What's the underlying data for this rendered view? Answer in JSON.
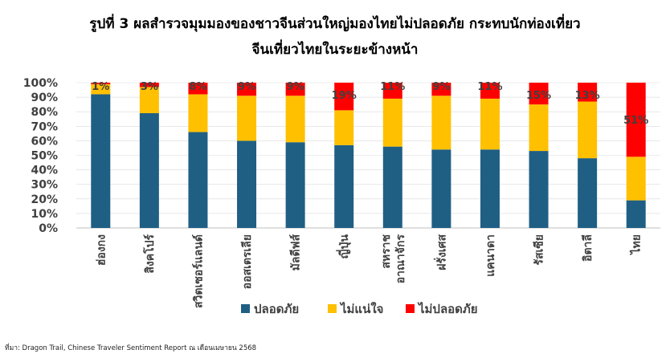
{
  "title_line1": "รูปที่ 3 ผลสำรวจมุมมองของชาวจีนส่วนใหญ่มองไทยไม่ปลอดภัย กระทบนักท่องเที่ยว",
  "title_line2": "จีนเที่ยวไทยในระยะข้างหน้า",
  "source": "ที่มา: Dragon Trail, Chinese Traveler Sentiment Report ณ เดือนเมษายน 2568",
  "colors": {
    "safe": "#1f5f84",
    "unsure": "#ffc000",
    "unsafe": "#ff0000",
    "label": "#404040",
    "grid": "#d9d9d9"
  },
  "chart_data": {
    "type": "bar",
    "stacked": true,
    "categories": [
      "ฮ่องกง",
      "สิงคโปร์",
      "สวิตเซอร์แลนด์",
      "ออสเตรเลีย",
      "มัลดีฟส์",
      "ญี่ปุ่น",
      "สหราช อาณาจักร",
      "ฝรั่งเศส",
      "แคนาดา",
      "รัสเซีย",
      "อิตาลี",
      "ไทย"
    ],
    "series": [
      {
        "name": "ปลอดภัย",
        "values": [
          92,
          79,
          66,
          60,
          59,
          57,
          56,
          54,
          54,
          53,
          48,
          19
        ]
      },
      {
        "name": "ไม่แน่ใจ",
        "values": [
          7,
          18,
          26,
          31,
          32,
          24,
          33,
          37,
          35,
          32,
          39,
          30
        ]
      },
      {
        "name": "ไม่ปลอดภัย",
        "values": [
          1,
          3,
          8,
          9,
          9,
          19,
          11,
          9,
          11,
          15,
          13,
          51
        ]
      }
    ],
    "data_labels": [
      "1%",
      "3%",
      "8%",
      "9%",
      "9%",
      "19%",
      "11%",
      "9%",
      "11%",
      "15%",
      "13%",
      "51%"
    ],
    "y_ticks": [
      "0%",
      "10%",
      "20%",
      "30%",
      "40%",
      "50%",
      "60%",
      "70%",
      "80%",
      "90%",
      "100%"
    ],
    "ylim": [
      0,
      100
    ],
    "legend": "bottom"
  }
}
